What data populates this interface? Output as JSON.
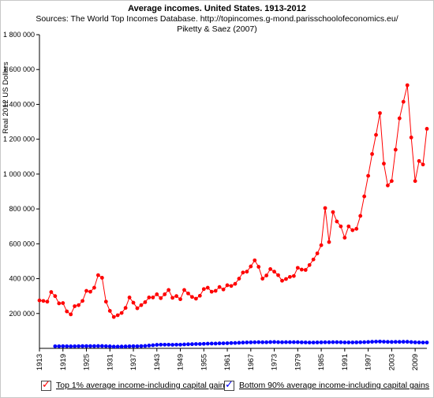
{
  "header": {
    "title": "Average incomes. United States. 1913-2012",
    "sources_line": "Sources: The World Top Incomes Database. http://topincomes.g-mond.parisschoolofeconomics.eu/",
    "authors_line": "Piketty & Saez (2007)"
  },
  "legend": [
    {
      "label": "Top 1% average income-including capital gains",
      "color": "#ff0000",
      "checked": true
    },
    {
      "label": "Bottom 90% average income-including capital gains",
      "color": "#0000ff",
      "checked": true
    }
  ],
  "chart_data": {
    "type": "line",
    "title": "Average incomes. United States. 1913-2012",
    "ylabel": "Real 2012 US Dollars",
    "xlabel": "",
    "ylim": [
      0,
      1800000
    ],
    "xlim": [
      1913,
      2012
    ],
    "y_ticks": [
      200000,
      400000,
      600000,
      800000,
      1000000,
      1200000,
      1400000,
      1600000,
      1800000
    ],
    "y_tick_labels": [
      "200 000",
      "400 000",
      "600 000",
      "800 000",
      "1 000 000",
      "1 200 000",
      "1 400 000",
      "1 600 000",
      "1 800 000"
    ],
    "x_ticks": [
      1913,
      1919,
      1925,
      1931,
      1937,
      1943,
      1949,
      1955,
      1961,
      1967,
      1973,
      1979,
      1985,
      1991,
      1997,
      2003,
      2009
    ],
    "grid": false,
    "legend_position": "bottom",
    "series": [
      {
        "name": "Top 1% average income-including capital gains",
        "color": "#ff0000",
        "x": [
          1913,
          1914,
          1915,
          1916,
          1917,
          1918,
          1919,
          1920,
          1921,
          1922,
          1923,
          1924,
          1925,
          1926,
          1927,
          1928,
          1929,
          1930,
          1931,
          1932,
          1933,
          1934,
          1935,
          1936,
          1937,
          1938,
          1939,
          1940,
          1941,
          1942,
          1943,
          1944,
          1945,
          1946,
          1947,
          1948,
          1949,
          1950,
          1951,
          1952,
          1953,
          1954,
          1955,
          1956,
          1957,
          1958,
          1959,
          1960,
          1961,
          1962,
          1963,
          1964,
          1965,
          1966,
          1967,
          1968,
          1969,
          1970,
          1971,
          1972,
          1973,
          1974,
          1975,
          1976,
          1977,
          1978,
          1979,
          1980,
          1981,
          1982,
          1983,
          1984,
          1985,
          1986,
          1987,
          1988,
          1989,
          1990,
          1991,
          1992,
          1993,
          1994,
          1995,
          1996,
          1997,
          1998,
          1999,
          2000,
          2001,
          2002,
          2003,
          2004,
          2005,
          2006,
          2007,
          2008,
          2009,
          2010,
          2011,
          2012
        ],
        "values": [
          275000,
          272000,
          268000,
          323000,
          300000,
          258000,
          260000,
          212000,
          195000,
          242000,
          248000,
          272000,
          330000,
          325000,
          348000,
          420000,
          405000,
          268000,
          215000,
          180000,
          190000,
          203000,
          232000,
          292000,
          262000,
          230000,
          248000,
          265000,
          292000,
          292000,
          310000,
          288000,
          310000,
          335000,
          290000,
          300000,
          282000,
          335000,
          315000,
          295000,
          285000,
          302000,
          340000,
          348000,
          325000,
          330000,
          352000,
          338000,
          362000,
          358000,
          370000,
          400000,
          435000,
          440000,
          470000,
          505000,
          468000,
          400000,
          418000,
          455000,
          440000,
          420000,
          388000,
          398000,
          410000,
          415000,
          462000,
          452000,
          450000,
          478000,
          510000,
          545000,
          592000,
          805000,
          610000,
          782000,
          728000,
          700000,
          635000,
          700000,
          678000,
          686000,
          760000,
          872000,
          990000,
          1115000,
          1225000,
          1350000,
          1060000,
          935000,
          960000,
          1140000,
          1320000,
          1415000,
          1510000,
          1210000,
          960000,
          1075000,
          1055000,
          1260000
        ]
      },
      {
        "name": "Bottom 90% average income-including capital gains",
        "color": "#0000ff",
        "x": [
          1917,
          1918,
          1919,
          1920,
          1921,
          1922,
          1923,
          1924,
          1925,
          1926,
          1927,
          1928,
          1929,
          1930,
          1931,
          1932,
          1933,
          1934,
          1935,
          1936,
          1937,
          1938,
          1939,
          1940,
          1941,
          1942,
          1943,
          1944,
          1945,
          1946,
          1947,
          1948,
          1949,
          1950,
          1951,
          1952,
          1953,
          1954,
          1955,
          1956,
          1957,
          1958,
          1959,
          1960,
          1961,
          1962,
          1963,
          1964,
          1965,
          1966,
          1967,
          1968,
          1969,
          1970,
          1971,
          1972,
          1973,
          1974,
          1975,
          1976,
          1977,
          1978,
          1979,
          1980,
          1981,
          1982,
          1983,
          1984,
          1985,
          1986,
          1987,
          1988,
          1989,
          1990,
          1991,
          1992,
          1993,
          1994,
          1995,
          1996,
          1997,
          1998,
          1999,
          2000,
          2001,
          2002,
          2003,
          2004,
          2005,
          2006,
          2007,
          2008,
          2009,
          2010,
          2011,
          2012
        ],
        "values": [
          12000,
          12000,
          12500,
          12000,
          11500,
          12000,
          12500,
          13000,
          13000,
          13000,
          13000,
          13500,
          13500,
          12500,
          11500,
          10000,
          10000,
          10500,
          11000,
          12000,
          12500,
          12000,
          13000,
          14000,
          16000,
          18000,
          20000,
          21000,
          21000,
          21000,
          20500,
          21000,
          21000,
          22500,
          23500,
          24000,
          25000,
          25000,
          26000,
          27000,
          27500,
          27500,
          28500,
          29000,
          29500,
          30500,
          31000,
          32000,
          33000,
          34000,
          34500,
          35000,
          35500,
          35000,
          35000,
          36000,
          36500,
          35500,
          35000,
          35500,
          35500,
          35500,
          35500,
          34500,
          34000,
          33500,
          33500,
          34000,
          34500,
          35000,
          35000,
          35500,
          35500,
          35000,
          34000,
          34000,
          34000,
          34500,
          35000,
          35500,
          36500,
          37500,
          38500,
          39000,
          38000,
          37000,
          36500,
          37000,
          37000,
          37500,
          37500,
          36000,
          34500,
          34000,
          33500,
          33500
        ]
      }
    ]
  }
}
